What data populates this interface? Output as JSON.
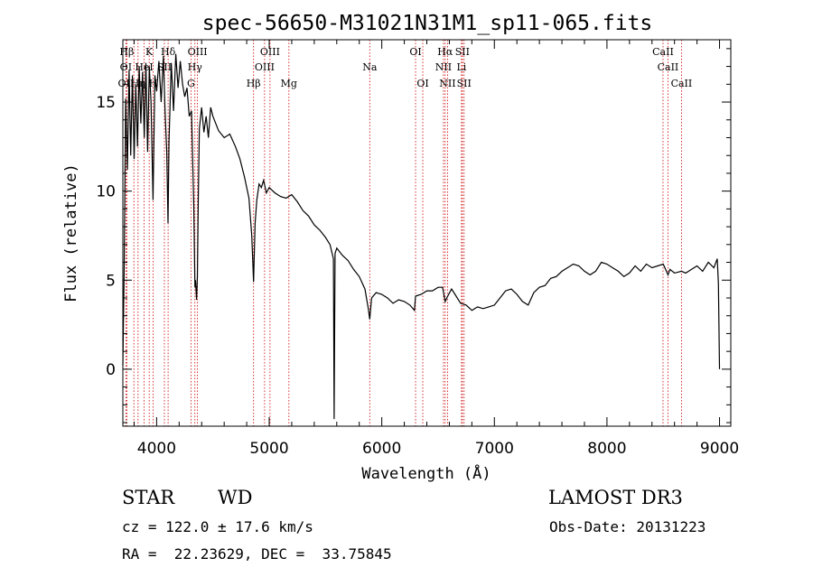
{
  "chart_data": {
    "type": "line",
    "title": "spec-56650-M31021N31M1_sp11-065.fits",
    "xlabel": "Wavelength (Å)",
    "ylabel": "Flux (relative)",
    "xlim": [
      3700,
      9100
    ],
    "ylim": [
      -3.2,
      18.5
    ],
    "x_ticks": [
      4000,
      5000,
      6000,
      7000,
      8000,
      9000
    ],
    "y_ticks": [
      0,
      5,
      10,
      15
    ],
    "grid": false,
    "line_color": "#000000",
    "marker_color": "#cc0000",
    "series": [
      {
        "x": [
          3700,
          3712,
          3725,
          3740,
          3755,
          3770,
          3785,
          3800,
          3815,
          3830,
          3845,
          3860,
          3875,
          3890,
          3905,
          3920,
          3935,
          3950,
          3968,
          3985,
          4000,
          4020,
          4040,
          4060,
          4075,
          4090,
          4101,
          4110,
          4130,
          4150,
          4170,
          4190,
          4210,
          4230,
          4250,
          4270,
          4290,
          4310,
          4330,
          4340,
          4345,
          4355,
          4362,
          4370,
          4380,
          4400,
          4420,
          4440,
          4460,
          4480,
          4500,
          4550,
          4600,
          4650,
          4700,
          4740,
          4780,
          4820,
          4845,
          4861,
          4875,
          4890,
          4910,
          4930,
          4950,
          4975,
          5000,
          5050,
          5100,
          5150,
          5200,
          5250,
          5300,
          5350,
          5400,
          5450,
          5500,
          5540,
          5570,
          5577,
          5585,
          5600,
          5650,
          5700,
          5750,
          5800,
          5850,
          5880,
          5893,
          5910,
          5950,
          6000,
          6050,
          6100,
          6150,
          6200,
          6250,
          6290,
          6300,
          6350,
          6400,
          6450,
          6500,
          6540,
          6563,
          6585,
          6620,
          6650,
          6700,
          6750,
          6800,
          6850,
          6900,
          6950,
          7000,
          7050,
          7100,
          7150,
          7200,
          7250,
          7300,
          7350,
          7400,
          7450,
          7500,
          7550,
          7600,
          7650,
          7700,
          7750,
          7800,
          7850,
          7900,
          7950,
          8000,
          8050,
          8100,
          8150,
          8200,
          8250,
          8300,
          8350,
          8400,
          8450,
          8500,
          8542,
          8560,
          8600,
          8662,
          8700,
          8750,
          8800,
          8850,
          8900,
          8950,
          8980,
          8990,
          9000
        ],
        "y": [
          0.2,
          5.8,
          15.2,
          11.2,
          16.8,
          12.0,
          16.5,
          11.8,
          16.0,
          12.5,
          17.0,
          13.8,
          16.7,
          13.0,
          17.2,
          12.2,
          17.0,
          15.0,
          9.5,
          16.5,
          15.6,
          17.3,
          15.0,
          17.6,
          14.5,
          12.2,
          8.2,
          12.8,
          17.2,
          14.5,
          17.7,
          15.8,
          17.3,
          16.0,
          15.3,
          15.8,
          14.2,
          14.5,
          9.2,
          4.6,
          5.0,
          3.9,
          5.2,
          9.5,
          13.5,
          14.7,
          13.3,
          14.2,
          13.0,
          14.7,
          14.2,
          13.4,
          13.0,
          13.2,
          12.5,
          11.8,
          10.8,
          9.6,
          7.5,
          4.9,
          8.2,
          9.5,
          10.4,
          10.2,
          10.6,
          9.9,
          10.2,
          9.9,
          9.7,
          9.6,
          9.8,
          9.4,
          8.9,
          8.6,
          8.1,
          7.8,
          7.4,
          7.0,
          6.2,
          -2.8,
          6.5,
          6.8,
          6.4,
          6.1,
          5.6,
          5.2,
          4.5,
          3.4,
          2.8,
          4.0,
          4.3,
          4.2,
          4.0,
          3.7,
          3.9,
          3.8,
          3.6,
          3.3,
          4.1,
          4.2,
          4.4,
          4.4,
          4.6,
          4.6,
          3.8,
          4.1,
          4.5,
          4.2,
          3.7,
          3.6,
          3.3,
          3.5,
          3.4,
          3.5,
          3.6,
          4.0,
          4.4,
          4.5,
          4.2,
          3.8,
          3.6,
          4.3,
          4.6,
          4.7,
          5.1,
          5.2,
          5.5,
          5.7,
          5.9,
          5.8,
          5.5,
          5.3,
          5.5,
          6.0,
          5.9,
          5.7,
          5.5,
          5.2,
          5.4,
          5.8,
          5.5,
          5.9,
          5.7,
          5.8,
          5.9,
          5.3,
          5.6,
          5.4,
          5.5,
          5.4,
          5.6,
          5.8,
          5.5,
          6.0,
          5.7,
          6.2,
          4.8,
          0.0
        ],
        "name": ""
      }
    ],
    "annotations": [
      {
        "text": "Hβ",
        "x": 3735,
        "row": 1
      },
      {
        "text": "K",
        "x": 3934,
        "row": 1
      },
      {
        "text": "Hδ",
        "x": 4102,
        "row": 1
      },
      {
        "text": "OIII",
        "x": 4363,
        "row": 1
      },
      {
        "text": "OIII",
        "x": 5007,
        "row": 1
      },
      {
        "text": "OI",
        "x": 6300,
        "row": 1
      },
      {
        "text": "Hα",
        "x": 6563,
        "row": 1
      },
      {
        "text": "SII",
        "x": 6716,
        "row": 1
      },
      {
        "text": "CaII",
        "x": 8498,
        "row": 1
      },
      {
        "text": "OI",
        "x": 3727,
        "row": 2
      },
      {
        "text": "HeI",
        "x": 3889,
        "row": 2
      },
      {
        "text": "SII",
        "x": 4069,
        "row": 2
      },
      {
        "text": "Hγ",
        "x": 4340,
        "row": 2
      },
      {
        "text": "OIII",
        "x": 4959,
        "row": 2
      },
      {
        "text": "Na",
        "x": 5893,
        "row": 2
      },
      {
        "text": "NII",
        "x": 6548,
        "row": 2
      },
      {
        "text": "Li",
        "x": 6708,
        "row": 2
      },
      {
        "text": "CaII",
        "x": 8542,
        "row": 2
      },
      {
        "text": "OII",
        "x": 3727,
        "row": 3
      },
      {
        "text": "Hη",
        "x": 3835,
        "row": 3
      },
      {
        "text": "H",
        "x": 3969,
        "row": 3
      },
      {
        "text": "G",
        "x": 4305,
        "row": 3
      },
      {
        "text": "Hβ",
        "x": 4861,
        "row": 3
      },
      {
        "text": "Mg",
        "x": 5175,
        "row": 3
      },
      {
        "text": "OI",
        "x": 6364,
        "row": 3
      },
      {
        "text": "NII",
        "x": 6584,
        "row": 3
      },
      {
        "text": "SII",
        "x": 6731,
        "row": 3
      },
      {
        "text": "CaII",
        "x": 8662,
        "row": 3
      }
    ],
    "line_markers": [
      3727,
      3735,
      3798,
      3835,
      3889,
      3934,
      3969,
      4069,
      4102,
      4305,
      4340,
      4363,
      4861,
      4959,
      5007,
      5175,
      5893,
      6300,
      6364,
      6548,
      6563,
      6584,
      6708,
      6716,
      6731,
      8498,
      8542,
      8662
    ]
  },
  "info": {
    "object_class": "STAR",
    "subclass": "WD",
    "survey": "LAMOST DR3",
    "cz": "cz = 122.0 ± 17.6 km/s",
    "obs_date": "Obs-Date: 20131223",
    "coords": "RA =  22.23629, DEC =  33.75845"
  }
}
